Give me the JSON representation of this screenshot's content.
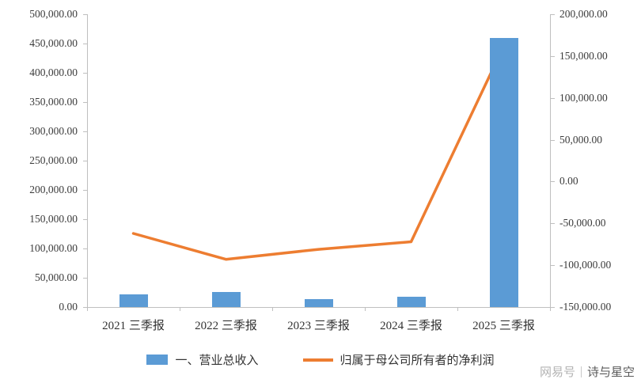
{
  "chart_data": {
    "type": "combo-bar-line",
    "categories": [
      "2021 三季报",
      "2022 三季报",
      "2023 三季报",
      "2024 三季报",
      "2025 三季报"
    ],
    "series": [
      {
        "name": "一、营业总收入",
        "type": "bar",
        "axis": "left",
        "color": "#5b9bd5",
        "values": [
          22000,
          26000,
          13500,
          17500,
          460000
        ]
      },
      {
        "name": "归属于母公司所有者的净利润",
        "type": "line",
        "axis": "right",
        "color": "#ed7d31",
        "values": [
          -62000,
          -93000,
          -81000,
          -72000,
          162000
        ]
      }
    ],
    "left_axis": {
      "min": 0,
      "max": 500000,
      "step": 50000,
      "labels": [
        "500,000.00",
        "450,000.00",
        "400,000.00",
        "350,000.00",
        "300,000.00",
        "250,000.00",
        "200,000.00",
        "150,000.00",
        "100,000.00",
        "50,000.00",
        "0.00"
      ]
    },
    "right_axis": {
      "min": -150000,
      "max": 200000,
      "step": 50000,
      "labels": [
        "200,000.00",
        "150,000.00",
        "100,000.00",
        "50,000.00",
        "0.00",
        "-50,000.00",
        "-100,000.00",
        "-150,000.00"
      ]
    },
    "grid": false,
    "legend_position": "bottom"
  },
  "legend": {
    "items": [
      {
        "label": "一、营业总收入",
        "color": "#5b9bd5",
        "marker": "bar"
      },
      {
        "label": "归属于母公司所有者的净利润",
        "color": "#ed7d31",
        "marker": "line"
      }
    ]
  },
  "watermark": {
    "prefix": "网易号",
    "name": "诗与星空"
  },
  "colors": {
    "bar": "#5b9bd5",
    "line": "#ed7d31",
    "axis": "#bfbfbf",
    "text": "#333333"
  }
}
